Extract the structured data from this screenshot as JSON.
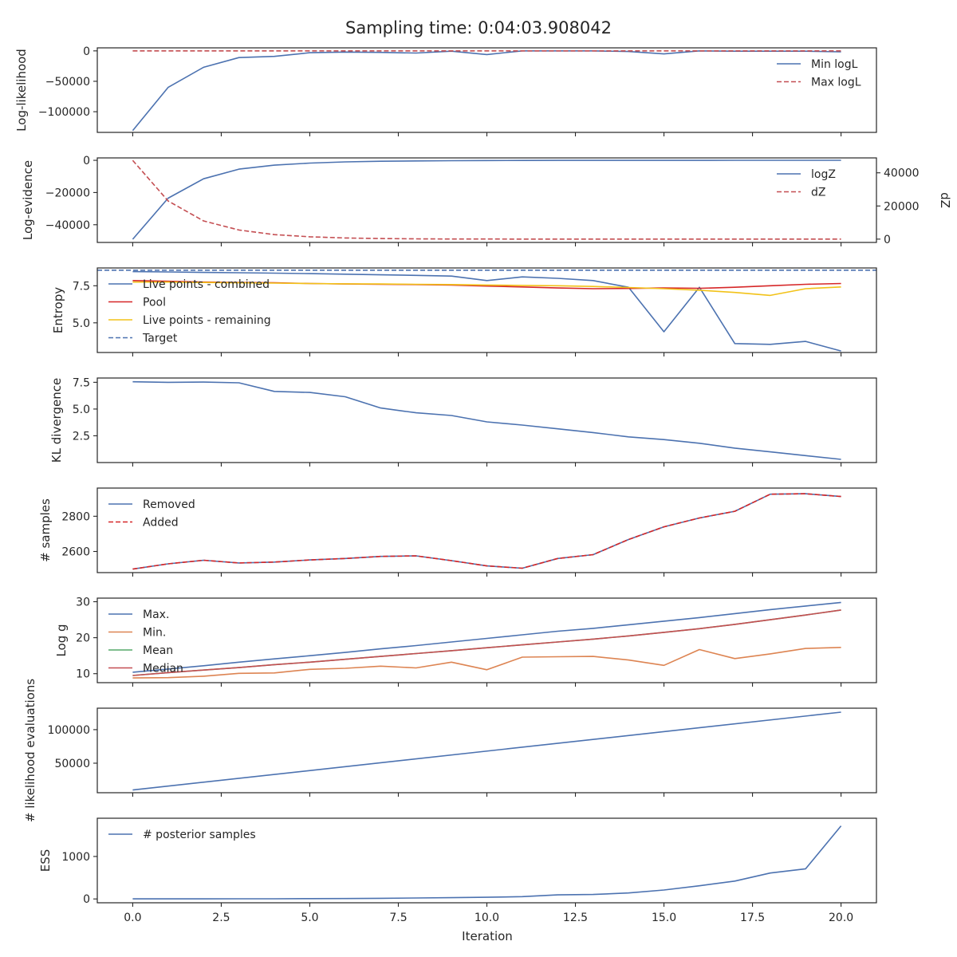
{
  "title": "Sampling time: 0:04:03.908042",
  "chart_data": [
    {
      "type": "line",
      "ylabel": "Log-likelihood",
      "ylim": [
        -134000,
        5000
      ],
      "yticks": [
        0,
        -50000,
        -100000
      ],
      "ytick_labels": [
        "0",
        "−50000",
        "−100000"
      ],
      "legend": "top-right",
      "series": [
        {
          "name": "Min logL",
          "color": "#4c72b0",
          "dash": false,
          "x": [
            0,
            1,
            2,
            3,
            4,
            5,
            6,
            7,
            8,
            9,
            10,
            11,
            12,
            13,
            14,
            15,
            16,
            17,
            18,
            19,
            20
          ],
          "values": [
            -131000,
            -60000,
            -27000,
            -11000,
            -9000,
            -3000,
            -2000,
            -2500,
            -3500,
            -500,
            -6000,
            0,
            0,
            0,
            -1000,
            -5000,
            0,
            -500,
            -500,
            -500,
            -1500
          ]
        },
        {
          "name": "Max logL",
          "color": "#c44e52",
          "dash": true,
          "x": [
            0,
            20
          ],
          "values": [
            0,
            0
          ]
        }
      ]
    },
    {
      "type": "line",
      "ylabel": "Log-evidence",
      "ylabel_right": "dZ",
      "ylim": [
        -51000,
        1500
      ],
      "yticks": [
        0,
        -20000,
        -40000
      ],
      "ytick_labels": [
        "0",
        "−20000",
        "−40000"
      ],
      "ylim_right": [
        -2000,
        49000
      ],
      "yticks_right": [
        0,
        20000,
        40000
      ],
      "ytick_labels_right": [
        "0",
        "20000",
        "40000"
      ],
      "legend": "top-right",
      "series": [
        {
          "name": "logZ",
          "color": "#4c72b0",
          "dash": false,
          "axis": "left",
          "x": [
            0,
            1,
            2,
            3,
            4,
            5,
            6,
            7,
            8,
            9,
            10,
            11,
            12,
            13,
            14,
            15,
            16,
            17,
            18,
            19,
            20
          ],
          "values": [
            -49000,
            -23500,
            -11500,
            -5500,
            -3000,
            -1700,
            -1000,
            -600,
            -400,
            -250,
            -150,
            -100,
            -60,
            -40,
            -30,
            -20,
            -15,
            -10,
            -8,
            -5,
            -3
          ]
        },
        {
          "name": "dZ",
          "color": "#c44e52",
          "dash": true,
          "axis": "right",
          "x": [
            0,
            1,
            2,
            3,
            4,
            5,
            6,
            7,
            8,
            9,
            10,
            11,
            12,
            13,
            14,
            15,
            16,
            17,
            18,
            19,
            20
          ],
          "values": [
            47500,
            23000,
            11000,
            5500,
            2700,
            1400,
            700,
            350,
            180,
            90,
            50,
            25,
            10,
            5,
            3,
            2,
            1,
            1,
            0,
            0,
            0
          ]
        }
      ]
    },
    {
      "type": "line",
      "ylabel": "Entropy",
      "ylim": [
        3.0,
        8.7
      ],
      "yticks": [
        7.5,
        5.0
      ],
      "ytick_labels": [
        "7.5",
        "5.0"
      ],
      "legend": "top-left",
      "series": [
        {
          "name": "Live points - combined",
          "color": "#4c72b0",
          "dash": false,
          "x": [
            0,
            1,
            2,
            3,
            4,
            5,
            6,
            7,
            8,
            9,
            10,
            11,
            12,
            13,
            14,
            15,
            16,
            17,
            18,
            19,
            20
          ],
          "values": [
            8.45,
            8.43,
            8.4,
            8.38,
            8.35,
            8.32,
            8.28,
            8.24,
            8.2,
            8.15,
            7.85,
            8.1,
            8.0,
            7.85,
            7.4,
            4.4,
            7.4,
            3.6,
            3.55,
            3.75,
            3.1
          ]
        },
        {
          "name": "Pool",
          "color": "#d62728",
          "dash": false,
          "x": [
            0,
            1,
            2,
            3,
            4,
            5,
            6,
            7,
            8,
            9,
            10,
            11,
            12,
            13,
            14,
            15,
            16,
            17,
            18,
            19,
            20
          ],
          "values": [
            7.85,
            7.8,
            7.75,
            7.72,
            7.7,
            7.65,
            7.62,
            7.6,
            7.58,
            7.55,
            7.48,
            7.42,
            7.35,
            7.3,
            7.32,
            7.35,
            7.33,
            7.4,
            7.5,
            7.6,
            7.65
          ]
        },
        {
          "name": "Live points - remaining",
          "color": "#f2c218",
          "dash": false,
          "x": [
            0,
            1,
            2,
            3,
            4,
            5,
            6,
            7,
            8,
            9,
            10,
            11,
            12,
            13,
            14,
            15,
            16,
            17,
            18,
            19,
            20
          ],
          "values": [
            7.75,
            7.75,
            7.72,
            7.7,
            7.68,
            7.65,
            7.63,
            7.62,
            7.6,
            7.58,
            7.55,
            7.52,
            7.5,
            7.45,
            7.38,
            7.3,
            7.2,
            7.05,
            6.85,
            7.3,
            7.42
          ]
        },
        {
          "name": "Target",
          "color": "#4c72b0",
          "dash": true,
          "x": [
            -1,
            21
          ],
          "values": [
            8.55,
            8.55
          ]
        }
      ]
    },
    {
      "type": "line",
      "ylabel": "KL divergence",
      "ylim": [
        0.0,
        7.9
      ],
      "yticks": [
        7.5,
        5.0,
        2.5
      ],
      "ytick_labels": [
        "7.5",
        "5.0",
        "2.5"
      ],
      "legend": "none",
      "series": [
        {
          "name": "",
          "color": "#4c72b0",
          "dash": false,
          "x": [
            0,
            1,
            2,
            3,
            4,
            5,
            6,
            7,
            8,
            9,
            10,
            11,
            12,
            13,
            14,
            15,
            16,
            17,
            18,
            19,
            20
          ],
          "values": [
            7.55,
            7.5,
            7.52,
            7.45,
            6.65,
            6.55,
            6.15,
            5.1,
            4.65,
            4.4,
            3.8,
            3.5,
            3.15,
            2.8,
            2.4,
            2.15,
            1.8,
            1.35,
            1.0,
            0.65,
            0.3
          ]
        }
      ]
    },
    {
      "type": "line",
      "ylabel": "# samples",
      "ylim": [
        2480,
        2960
      ],
      "yticks": [
        2800,
        2600
      ],
      "ytick_labels": [
        "2800",
        "2600"
      ],
      "legend": "top-left",
      "series": [
        {
          "name": "Removed",
          "color": "#4c72b0",
          "dash": false,
          "x": [
            0,
            1,
            2,
            3,
            4,
            5,
            6,
            7,
            8,
            9,
            10,
            11,
            12,
            13,
            14,
            15,
            16,
            17,
            18,
            19,
            20
          ],
          "values": [
            2500,
            2530,
            2550,
            2535,
            2540,
            2552,
            2560,
            2572,
            2575,
            2548,
            2518,
            2505,
            2560,
            2582,
            2668,
            2740,
            2790,
            2828,
            2925,
            2928,
            2912
          ]
        },
        {
          "name": "Added",
          "color": "#d62728",
          "dash": true,
          "x": [
            0,
            1,
            2,
            3,
            4,
            5,
            6,
            7,
            8,
            9,
            10,
            11,
            12,
            13,
            14,
            15,
            16,
            17,
            18,
            19,
            20
          ],
          "values": [
            2500,
            2530,
            2550,
            2535,
            2540,
            2552,
            2560,
            2572,
            2575,
            2548,
            2518,
            2505,
            2560,
            2582,
            2668,
            2740,
            2790,
            2828,
            2925,
            2928,
            2912
          ]
        }
      ]
    },
    {
      "type": "line",
      "ylabel": "Log g",
      "ylim": [
        7.5,
        31.0
      ],
      "yticks": [
        30,
        20,
        10
      ],
      "ytick_labels": [
        "30",
        "20",
        "10"
      ],
      "legend": "top-left",
      "series": [
        {
          "name": "Max.",
          "color": "#4c72b0",
          "dash": false,
          "x": [
            0,
            1,
            2,
            3,
            4,
            5,
            6,
            7,
            8,
            9,
            10,
            11,
            12,
            13,
            14,
            15,
            16,
            17,
            18,
            19,
            20
          ],
          "values": [
            10.4,
            11.3,
            12.2,
            13.2,
            14.1,
            15.0,
            15.9,
            16.9,
            17.8,
            18.8,
            19.8,
            20.8,
            21.8,
            22.6,
            23.6,
            24.6,
            25.6,
            26.7,
            27.8,
            28.8,
            29.8
          ]
        },
        {
          "name": "Min.",
          "color": "#dd8452",
          "dash": false,
          "x": [
            0,
            1,
            2,
            3,
            4,
            5,
            6,
            7,
            8,
            9,
            10,
            11,
            12,
            13,
            14,
            15,
            16,
            17,
            18,
            19,
            20
          ],
          "values": [
            8.8,
            8.9,
            9.3,
            10.1,
            10.2,
            11.2,
            11.5,
            12.1,
            11.6,
            13.2,
            11.1,
            14.6,
            14.7,
            14.8,
            13.8,
            12.3,
            16.7,
            14.2,
            15.5,
            17.0,
            17.3
          ]
        },
        {
          "name": "Mean",
          "color": "#55a868",
          "dash": false,
          "x": [
            0,
            1,
            2,
            3,
            4,
            5,
            6,
            7,
            8,
            9,
            10,
            11,
            12,
            13,
            14,
            15,
            16,
            17,
            18,
            19,
            20
          ],
          "values": [
            9.5,
            10.3,
            11.0,
            11.7,
            12.5,
            13.2,
            14.0,
            14.8,
            15.6,
            16.4,
            17.2,
            18.0,
            18.8,
            19.6,
            20.5,
            21.5,
            22.5,
            23.7,
            25.0,
            26.3,
            27.7
          ]
        },
        {
          "name": "Median",
          "color": "#c44e52",
          "dash": false,
          "x": [
            0,
            1,
            2,
            3,
            4,
            5,
            6,
            7,
            8,
            9,
            10,
            11,
            12,
            13,
            14,
            15,
            16,
            17,
            18,
            19,
            20
          ],
          "values": [
            9.5,
            10.3,
            11.0,
            11.7,
            12.5,
            13.2,
            14.0,
            14.8,
            15.6,
            16.4,
            17.2,
            18.0,
            18.8,
            19.6,
            20.5,
            21.5,
            22.5,
            23.7,
            25.0,
            26.3,
            27.7
          ]
        }
      ]
    },
    {
      "type": "line",
      "ylabel": "# likelihood evaluations",
      "ylim": [
        6000,
        132000
      ],
      "yticks": [
        100000,
        50000
      ],
      "ytick_labels": [
        "100000",
        "50000"
      ],
      "legend": "none",
      "series": [
        {
          "name": "",
          "color": "#4c72b0",
          "dash": false,
          "x": [
            0,
            20
          ],
          "values": [
            10000,
            126000
          ]
        }
      ]
    },
    {
      "type": "line",
      "ylabel": "ESS",
      "ylim": [
        -90,
        1900
      ],
      "yticks": [
        1000,
        0
      ],
      "ytick_labels": [
        "1000",
        "0"
      ],
      "legend": "top-left",
      "series": [
        {
          "name": "# posterior samples",
          "color": "#4c72b0",
          "dash": false,
          "x": [
            0,
            1,
            2,
            3,
            4,
            5,
            6,
            7,
            8,
            9,
            10,
            11,
            12,
            13,
            14,
            15,
            16,
            17,
            18,
            19,
            20
          ],
          "values": [
            2,
            2,
            2,
            3,
            4,
            7,
            10,
            15,
            22,
            30,
            40,
            55,
            95,
            105,
            140,
            210,
            310,
            420,
            610,
            710,
            1720
          ]
        }
      ]
    }
  ],
  "x_axis": {
    "xlabel": "Iteration",
    "xlim": [
      -1,
      21
    ],
    "ticks": [
      0,
      2.5,
      5,
      7.5,
      10,
      12.5,
      15,
      17.5,
      20
    ],
    "tick_labels": [
      "0.0",
      "2.5",
      "5.0",
      "7.5",
      "10.0",
      "12.5",
      "15.0",
      "17.5",
      "20.0"
    ]
  }
}
